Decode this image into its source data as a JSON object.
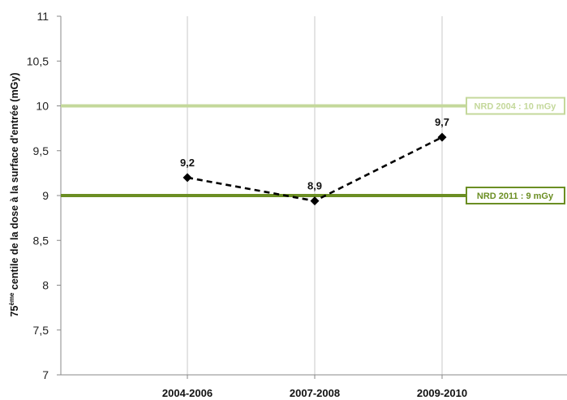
{
  "chart_data": {
    "type": "line",
    "categories": [
      "2004-2006",
      "2007-2008",
      "2009-2010"
    ],
    "series": [
      {
        "values": [
          9.2,
          8.94,
          9.65
        ],
        "data_labels": [
          "9,2",
          "8,9",
          "9,7"
        ],
        "style": "dashed",
        "marker": "diamond",
        "color": "#000000"
      }
    ],
    "reference_lines": [
      {
        "label": "NRD 2004 : 10 mGy",
        "value": 10,
        "color": "#c4d89b"
      },
      {
        "label": "NRD 2011 : 9 mGy",
        "value": 9,
        "color": "#6b8e23"
      }
    ],
    "ylabel_main": "75",
    "ylabel_sup": "ème",
    "ylabel_rest": " centile de la dose à la surface d'entrée (mGy)",
    "ylim": [
      7,
      11
    ],
    "yticks": [
      7,
      7.5,
      8,
      8.5,
      9,
      9.5,
      10,
      10.5,
      11
    ],
    "ytick_labels": [
      "7",
      "7,5",
      "8",
      "8,5",
      "9",
      "9,5",
      "10",
      "10,5",
      "11"
    ],
    "grid": "vertical",
    "xlabel": ""
  }
}
